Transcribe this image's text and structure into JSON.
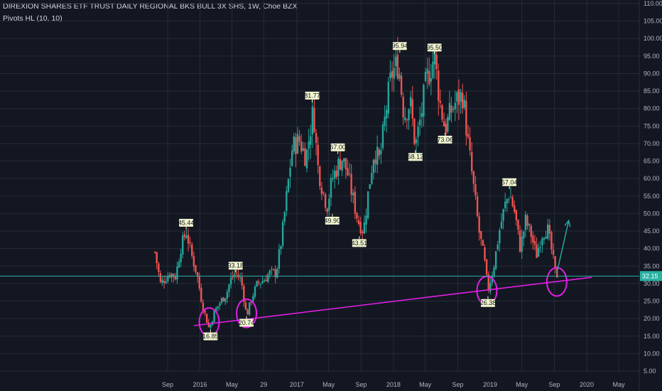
{
  "header": {
    "title": "DIREXION SHARES ETF TRUST DAILY REGIONAL BKS BULL 3X SHS, 1W, Choe BZX",
    "indicator": "Pivots HL (10, 10)"
  },
  "colors": {
    "background": "#131722",
    "grid": "#262b37",
    "up": "#26a69a",
    "down": "#ef5350",
    "trendline": "#e31ee6",
    "circle": "#e31ee6",
    "arrow": "#26a69a",
    "price_line": "#2ab2a3",
    "pivot_bg": "#f3f6cf"
  },
  "chart_data": {
    "type": "candlestick",
    "ylim": [
      0,
      110
    ],
    "y_ticks": [
      5,
      10,
      15,
      20,
      25,
      30,
      35,
      40,
      45,
      50,
      55,
      60,
      65,
      70,
      75,
      80,
      85,
      90,
      95,
      100,
      105,
      110
    ],
    "y_tick_labels": [
      "5.00",
      "10.00",
      "15.00",
      "20.00",
      "25.00",
      "30.00",
      "35.00",
      "40.00",
      "45.00",
      "50.00",
      "55.00",
      "60.00",
      "65.00",
      "70.00",
      "75.00",
      "80.00",
      "85.00",
      "90.00",
      "95.00",
      "100.00",
      "105.00",
      "110.00"
    ],
    "x_tick_labels": [
      {
        "label": "Sep",
        "date": "2015-09-01"
      },
      {
        "label": "2016",
        "date": "2016-01-01"
      },
      {
        "label": "May",
        "date": "2016-05-01"
      },
      {
        "label": "29",
        "date": "2016-08-29"
      },
      {
        "label": "2017",
        "date": "2017-01-01"
      },
      {
        "label": "May",
        "date": "2017-05-01"
      },
      {
        "label": "Sep",
        "date": "2017-09-01"
      },
      {
        "label": "2018",
        "date": "2018-01-01"
      },
      {
        "label": "May",
        "date": "2018-05-01"
      },
      {
        "label": "Sep",
        "date": "2018-09-01"
      },
      {
        "label": "2019",
        "date": "2019-01-01"
      },
      {
        "label": "May",
        "date": "2019-05-01"
      },
      {
        "label": "Sep",
        "date": "2019-09-01"
      },
      {
        "label": "2020",
        "date": "2020-01-01"
      },
      {
        "label": "May",
        "date": "2020-05-01"
      }
    ],
    "ohlc_path": [
      [
        "2015-07-15",
        39
      ],
      [
        "2015-08-05",
        30
      ],
      [
        "2015-09-10",
        33
      ],
      [
        "2015-10-01",
        32
      ],
      [
        "2015-10-20",
        40
      ],
      [
        "2015-11-10",
        45
      ],
      [
        "2015-12-01",
        38
      ],
      [
        "2015-12-20",
        33
      ],
      [
        "2016-01-10",
        24
      ],
      [
        "2016-02-05",
        17
      ],
      [
        "2016-02-25",
        22
      ],
      [
        "2016-03-20",
        25
      ],
      [
        "2016-04-10",
        27
      ],
      [
        "2016-04-25",
        31
      ],
      [
        "2016-05-15",
        33
      ],
      [
        "2016-06-05",
        31
      ],
      [
        "2016-06-25",
        20.7
      ],
      [
        "2016-07-15",
        26
      ],
      [
        "2016-08-05",
        30
      ],
      [
        "2016-08-29",
        31
      ],
      [
        "2016-09-20",
        33
      ],
      [
        "2016-10-15",
        33
      ],
      [
        "2016-11-05",
        43
      ],
      [
        "2016-11-25",
        56
      ],
      [
        "2016-12-15",
        69
      ],
      [
        "2017-01-10",
        71
      ],
      [
        "2017-02-05",
        66
      ],
      [
        "2017-03-05",
        80
      ],
      [
        "2017-03-20",
        64
      ],
      [
        "2017-04-05",
        58
      ],
      [
        "2017-04-25",
        52
      ],
      [
        "2017-05-15",
        60
      ],
      [
        "2017-06-01",
        63
      ],
      [
        "2017-06-20",
        66
      ],
      [
        "2017-07-10",
        62
      ],
      [
        "2017-07-30",
        55
      ],
      [
        "2017-08-20",
        48
      ],
      [
        "2017-09-10",
        45
      ],
      [
        "2017-10-01",
        58
      ],
      [
        "2017-10-20",
        68
      ],
      [
        "2017-11-10",
        65
      ],
      [
        "2017-12-05",
        80
      ],
      [
        "2017-12-25",
        90
      ],
      [
        "2018-01-20",
        93
      ],
      [
        "2018-02-10",
        78
      ],
      [
        "2018-03-05",
        82
      ],
      [
        "2018-03-25",
        69
      ],
      [
        "2018-04-15",
        78
      ],
      [
        "2018-05-05",
        88
      ],
      [
        "2018-06-05",
        95
      ],
      [
        "2018-06-25",
        82
      ],
      [
        "2018-07-15",
        74
      ],
      [
        "2018-08-05",
        79
      ],
      [
        "2018-08-25",
        82
      ],
      [
        "2018-09-20",
        84
      ],
      [
        "2018-10-10",
        70
      ],
      [
        "2018-10-30",
        58
      ],
      [
        "2018-11-20",
        45
      ],
      [
        "2018-12-10",
        37
      ],
      [
        "2018-12-24",
        28
      ],
      [
        "2019-01-15",
        35
      ],
      [
        "2019-02-05",
        45
      ],
      [
        "2019-02-25",
        52
      ],
      [
        "2019-03-15",
        56
      ],
      [
        "2019-04-05",
        50
      ],
      [
        "2019-04-25",
        40
      ],
      [
        "2019-05-15",
        48
      ],
      [
        "2019-06-05",
        44
      ],
      [
        "2019-06-25",
        38
      ],
      [
        "2019-07-15",
        44
      ],
      [
        "2019-08-05",
        46
      ],
      [
        "2019-08-20",
        40
      ],
      [
        "2019-09-05",
        33
      ],
      [
        "2019-09-15",
        32.15
      ]
    ],
    "pivots": [
      {
        "date": "2015-11-10",
        "value": 45.44,
        "label": "45.44",
        "type": "high"
      },
      {
        "date": "2016-02-10",
        "value": 16.85,
        "label": "16.85",
        "type": "low"
      },
      {
        "date": "2016-05-15",
        "value": 33.18,
        "label": "33.18",
        "type": "high"
      },
      {
        "date": "2016-06-25",
        "value": 20.74,
        "label": "20.74",
        "type": "low"
      },
      {
        "date": "2017-02-28",
        "value": 81.77,
        "label": "81.77",
        "type": "high"
      },
      {
        "date": "2017-06-05",
        "value": 67.0,
        "label": "67.00",
        "type": "high"
      },
      {
        "date": "2017-05-15",
        "value": 49.9,
        "label": "49.90",
        "type": "low"
      },
      {
        "date": "2017-08-25",
        "value": 43.51,
        "label": "43.51",
        "type": "low"
      },
      {
        "date": "2018-01-25",
        "value": 95.94,
        "label": "95.94",
        "type": "high"
      },
      {
        "date": "2018-06-05",
        "value": 95.5,
        "label": "95.50",
        "type": "high"
      },
      {
        "date": "2018-03-25",
        "value": 68.12,
        "label": "68.12",
        "type": "low"
      },
      {
        "date": "2018-07-15",
        "value": 73.06,
        "label": "73.06",
        "type": "low"
      },
      {
        "date": "2018-12-24",
        "value": 26.38,
        "label": "26.38",
        "type": "low"
      },
      {
        "date": "2019-03-15",
        "value": 57.04,
        "label": "57.04",
        "type": "high"
      }
    ],
    "last_price": {
      "value": 32.15,
      "label": "32.15"
    },
    "annotations": {
      "trendline": {
        "start": [
          "2015-12-10",
          18
        ],
        "end": [
          "2020-01-20",
          31.8
        ]
      },
      "circles": [
        {
          "date": "2016-02-05",
          "value": 19
        },
        {
          "date": "2016-06-25",
          "value": 21.5
        },
        {
          "date": "2018-12-20",
          "value": 28
        },
        {
          "date": "2019-09-10",
          "value": 30.5
        }
      ],
      "arrow": {
        "start": [
          "2019-09-10",
          33
        ],
        "end": [
          "2019-10-25",
          48
        ]
      }
    }
  }
}
